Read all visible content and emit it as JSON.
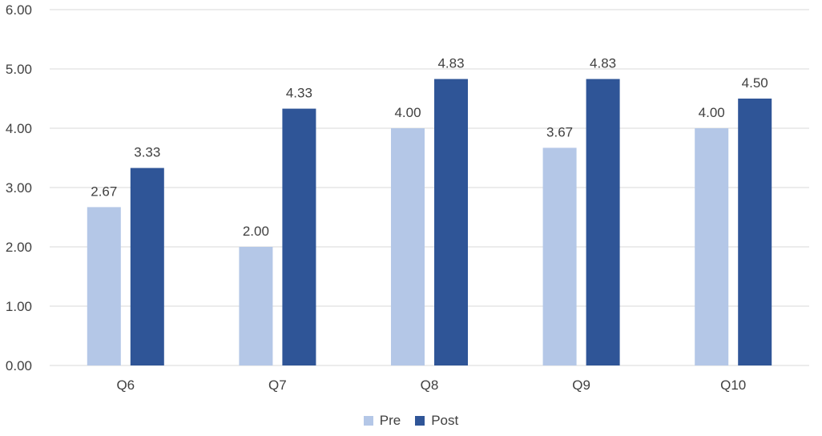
{
  "chart_data": {
    "type": "bar",
    "categories": [
      "Q6",
      "Q7",
      "Q8",
      "Q9",
      "Q10"
    ],
    "series": [
      {
        "name": "Pre",
        "values": [
          2.67,
          2.0,
          4.0,
          3.67,
          4.0
        ],
        "labels": [
          "2.67",
          "2.00",
          "4.00",
          "3.67",
          "4.00"
        ],
        "color": "#b4c7e7"
      },
      {
        "name": "Post",
        "values": [
          3.33,
          4.33,
          4.83,
          4.83,
          4.5
        ],
        "labels": [
          "3.33",
          "4.33",
          "4.83",
          "4.83",
          "4.50"
        ],
        "color": "#2f5597"
      }
    ],
    "ylim": [
      0,
      6
    ],
    "yticks": [
      0,
      1,
      2,
      3,
      4,
      5,
      6
    ],
    "ytick_labels": [
      "0.00",
      "1.00",
      "2.00",
      "3.00",
      "4.00",
      "5.00",
      "6.00"
    ],
    "grid": true,
    "legend_position": "bottom",
    "title": "",
    "xlabel": "",
    "ylabel": "",
    "colors": {
      "grid": "#d9d9d9",
      "axis_text": "#404040"
    }
  }
}
